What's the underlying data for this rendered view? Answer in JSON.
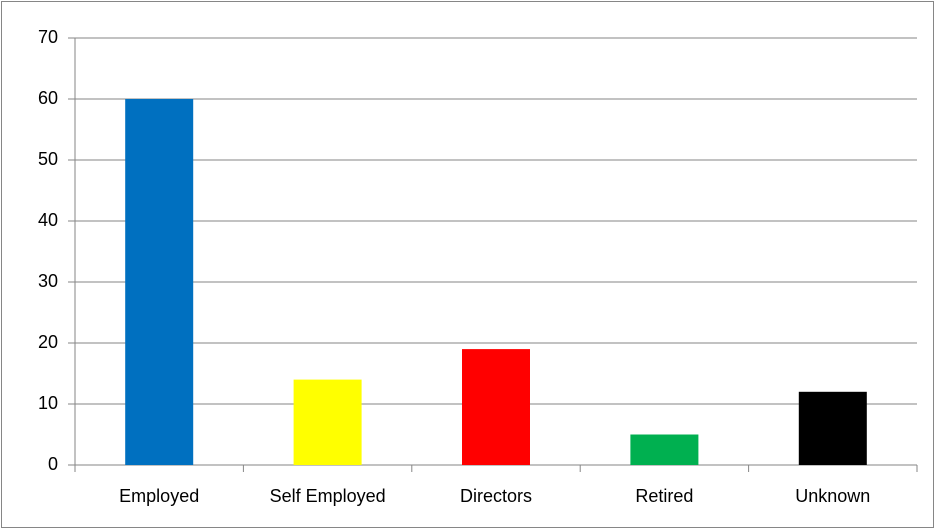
{
  "chart_data": {
    "type": "bar",
    "categories": [
      "Employed",
      "Self Employed",
      "Directors",
      "Retired",
      "Unknown"
    ],
    "values": [
      60,
      14,
      19,
      5,
      12
    ],
    "colors": [
      "#0070c0",
      "#ffff00",
      "#ff0000",
      "#00b050",
      "#000000"
    ],
    "ylim": [
      0,
      70
    ],
    "yticks": [
      0,
      10,
      20,
      30,
      40,
      50,
      60,
      70
    ],
    "grid": true
  }
}
